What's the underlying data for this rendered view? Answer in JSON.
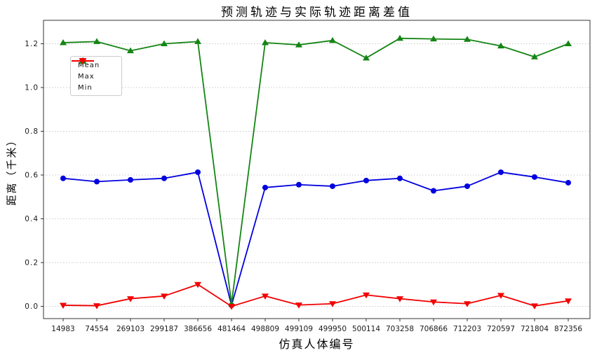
{
  "title": "预测轨迹与实际轨迹距离差值",
  "chart_data": {
    "type": "line",
    "title": "预测轨迹与实际轨迹距离差值",
    "xlabel": "仿真人体编号",
    "ylabel": "距离（千米）",
    "categories": [
      "14983",
      "74554",
      "269103",
      "299187",
      "386656",
      "481464",
      "498809",
      "499109",
      "499950",
      "500114",
      "703258",
      "706866",
      "712203",
      "720597",
      "721804",
      "872356"
    ],
    "series": [
      {
        "name": "Mean",
        "color": "#0000e0",
        "marker": "circle",
        "values": [
          0.585,
          0.57,
          0.578,
          0.585,
          0.613,
          0.005,
          0.543,
          0.556,
          0.549,
          0.575,
          0.585,
          0.528,
          0.549,
          0.613,
          0.591,
          0.565
        ]
      },
      {
        "name": "Max",
        "color": "#148514",
        "marker": "triangle-up",
        "values": [
          1.205,
          1.21,
          1.168,
          1.2,
          1.21,
          0.012,
          1.205,
          1.195,
          1.215,
          1.135,
          1.225,
          1.222,
          1.22,
          1.19,
          1.14,
          1.2
        ]
      },
      {
        "name": "Min",
        "color": "#f20000",
        "marker": "triangle-down",
        "values": [
          0.005,
          0.003,
          0.035,
          0.047,
          0.1,
          0.0,
          0.047,
          0.006,
          0.012,
          0.052,
          0.035,
          0.02,
          0.012,
          0.05,
          0.002,
          0.025
        ]
      }
    ],
    "yticks": [
      0.0,
      0.2,
      0.4,
      0.6,
      0.8,
      1.0,
      1.2
    ],
    "ytick_labels": [
      "0.0",
      "0.2",
      "0.4",
      "0.6",
      "0.8",
      "1.0",
      "1.2"
    ],
    "ylim": [
      -0.06,
      1.31
    ],
    "grid": "horizontal-dotted",
    "grid_color": "#c9c9c9",
    "legend_position": "upper-left",
    "legend_entries": [
      "Mean",
      "Max",
      "Min"
    ]
  }
}
